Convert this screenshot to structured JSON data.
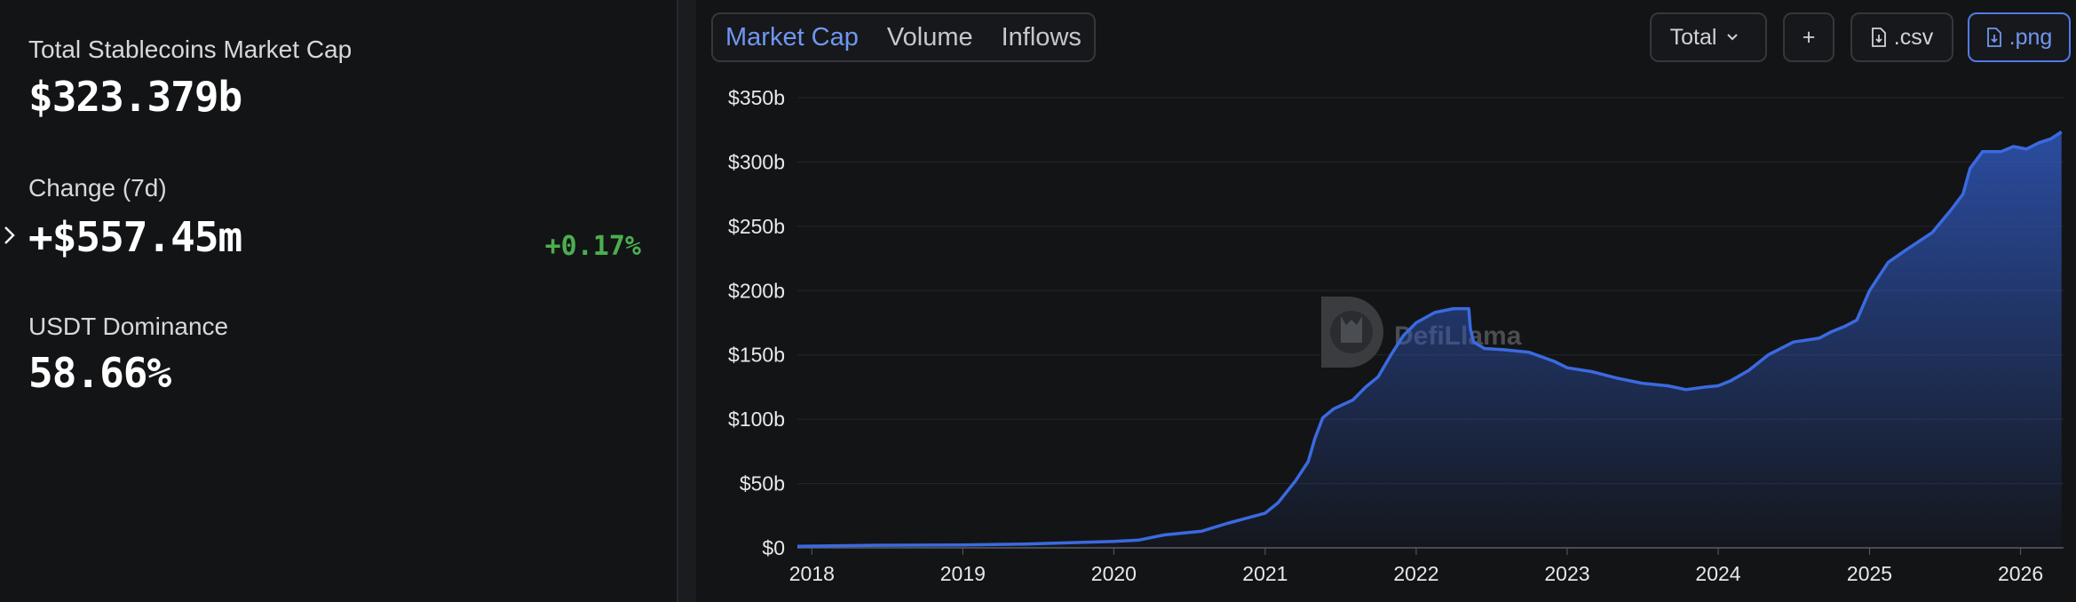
{
  "stats": {
    "market_cap_label": "Total Stablecoins Market Cap",
    "market_cap_value": "$323.379b",
    "change_label": "Change (7d)",
    "change_value": "+$557.45m",
    "change_pct": "+0.17%",
    "dominance_label": "USDT Dominance",
    "dominance_value": "58.66%"
  },
  "tabs": [
    {
      "label": "Market Cap",
      "active": true
    },
    {
      "label": "Volume",
      "active": false
    },
    {
      "label": "Inflows",
      "active": false
    }
  ],
  "toolbar": {
    "select_label": "Total",
    "add_label": "+",
    "csv_label": ".csv",
    "png_label": ".png"
  },
  "watermark": "DefiLlama",
  "colors": {
    "accent": "#6f97f1",
    "line": "#3b6ae0",
    "positive": "#4cae4f",
    "panel": "#131416",
    "background": "#1b1c1f"
  },
  "chart_data": {
    "type": "area",
    "title": "",
    "xlabel": "",
    "ylabel": "",
    "x_ticks": [
      "2018",
      "2019",
      "2020",
      "2021",
      "2022",
      "2023",
      "2024",
      "2025",
      "2026"
    ],
    "y_ticks": [
      "$0",
      "$50b",
      "$100b",
      "$150b",
      "$200b",
      "$250b",
      "$300b",
      "$350b"
    ],
    "ylim": [
      0,
      350
    ],
    "y_unit": "$b",
    "grid": true,
    "series": [
      {
        "x": [
          "2017-11-27",
          "2018-06-01",
          "2019-01-01",
          "2019-06-01",
          "2020-01-01",
          "2020-03-01",
          "2020-05-01",
          "2020-08-01",
          "2020-10-01",
          "2021-01-01",
          "2021-02-01",
          "2021-03-15",
          "2021-04-15",
          "2021-05-01",
          "2021-05-20",
          "2021-06-15",
          "2021-08-01",
          "2021-09-01",
          "2021-10-01",
          "2021-11-01",
          "2021-12-01",
          "2022-01-01",
          "2022-02-15",
          "2022-04-01",
          "2022-05-08",
          "2022-05-12",
          "2022-05-20",
          "2022-06-15",
          "2022-08-01",
          "2022-10-01",
          "2022-12-01",
          "2023-01-01",
          "2023-03-01",
          "2023-05-01",
          "2023-07-01",
          "2023-09-01",
          "2023-10-15",
          "2023-12-01",
          "2024-01-01",
          "2024-02-01",
          "2024-03-15",
          "2024-05-01",
          "2024-07-01",
          "2024-09-01",
          "2024-10-01",
          "2024-11-01",
          "2024-12-01",
          "2025-01-01",
          "2025-02-15",
          "2025-04-01",
          "2025-06-01",
          "2025-07-15",
          "2025-08-15",
          "2025-09-01",
          "2025-10-01",
          "2025-11-15",
          "2025-12-15",
          "2026-01-15",
          "2026-02-15",
          "2026-03-15",
          "2026-04-10"
        ],
        "y": [
          1.2,
          2,
          2.2,
          3,
          5,
          6,
          10,
          13,
          19,
          27,
          35,
          52,
          67,
          85,
          101,
          108,
          115,
          125,
          133,
          150,
          165,
          175,
          183,
          186,
          186,
          170,
          160,
          155,
          154,
          152,
          145,
          140,
          137,
          132,
          128,
          126,
          123,
          125,
          126,
          130,
          138,
          150,
          160,
          163,
          168,
          172,
          177,
          200,
          222,
          232,
          245,
          262,
          275,
          295,
          308,
          308,
          312,
          310,
          315,
          318,
          323.4
        ]
      }
    ]
  }
}
